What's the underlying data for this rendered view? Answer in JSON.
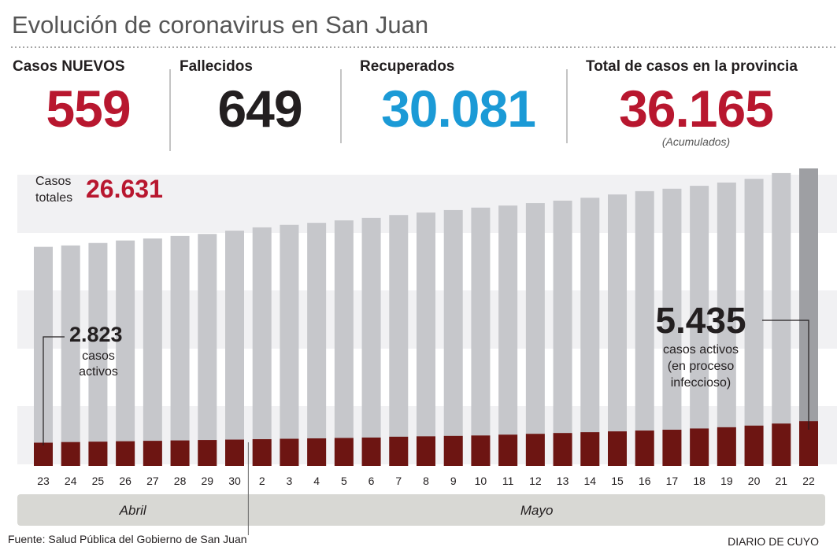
{
  "title": "Evolución de coronavirus en San Juan",
  "stats": [
    {
      "label": "Casos NUEVOS",
      "value": "559",
      "color": "#b8172f"
    },
    {
      "label": "Fallecidos",
      "value": "649",
      "color": "#231f20"
    },
    {
      "label": "Recuperados",
      "value": "30.081",
      "color": "#1b9ad6"
    },
    {
      "label": "Total de casos en la provincia",
      "value": "36.165",
      "note": "(Acumulados)",
      "color": "#b8172f"
    }
  ],
  "chart_data": {
    "type": "bar",
    "categories": [
      "23",
      "24",
      "25",
      "26",
      "27",
      "28",
      "29",
      "30",
      "2",
      "3",
      "4",
      "5",
      "6",
      "7",
      "8",
      "9",
      "10",
      "11",
      "12",
      "13",
      "14",
      "15",
      "16",
      "17",
      "18",
      "19",
      "20",
      "21",
      "22"
    ],
    "months": [
      "Abril",
      "Mayo"
    ],
    "series": [
      {
        "name": "Casos totales",
        "color": "#c6c7cb",
        "highlight_last_color": "#9e9fa3",
        "label_color": "#b8172f",
        "values": [
          26631,
          26800,
          27100,
          27400,
          27650,
          27950,
          28200,
          28600,
          29000,
          29300,
          29550,
          29850,
          30150,
          30500,
          30800,
          31100,
          31400,
          31650,
          31950,
          32250,
          32600,
          33000,
          33400,
          33700,
          34050,
          34450,
          34900,
          35600,
          36165
        ],
        "value_labels": [
          "26.631",
          null,
          null,
          null,
          null,
          null,
          null,
          null,
          null,
          null,
          null,
          null,
          null,
          null,
          null,
          null,
          null,
          null,
          null,
          null,
          null,
          null,
          null,
          null,
          null,
          null,
          null,
          null,
          null
        ]
      },
      {
        "name": "casos activos",
        "color": "#6d1512",
        "values": [
          2823,
          2900,
          2950,
          3000,
          3050,
          3100,
          3150,
          3200,
          3250,
          3300,
          3350,
          3400,
          3450,
          3550,
          3600,
          3650,
          3700,
          3800,
          3900,
          4000,
          4100,
          4200,
          4300,
          4400,
          4550,
          4700,
          4900,
          5150,
          5435
        ],
        "value_labels": [
          "2.823",
          null,
          null,
          null,
          null,
          null,
          null,
          null,
          null,
          null,
          null,
          null,
          null,
          null,
          null,
          null,
          null,
          null,
          null,
          null,
          null,
          null,
          null,
          null,
          null,
          null,
          null,
          null,
          "5.435"
        ]
      }
    ],
    "annotation": [
      "casos activos",
      "(en proceso",
      "infeccioso)"
    ]
  },
  "source": "Fuente: Salud Pública del Gobierno de San Juan",
  "brand": "DIARIO DE CUYO"
}
